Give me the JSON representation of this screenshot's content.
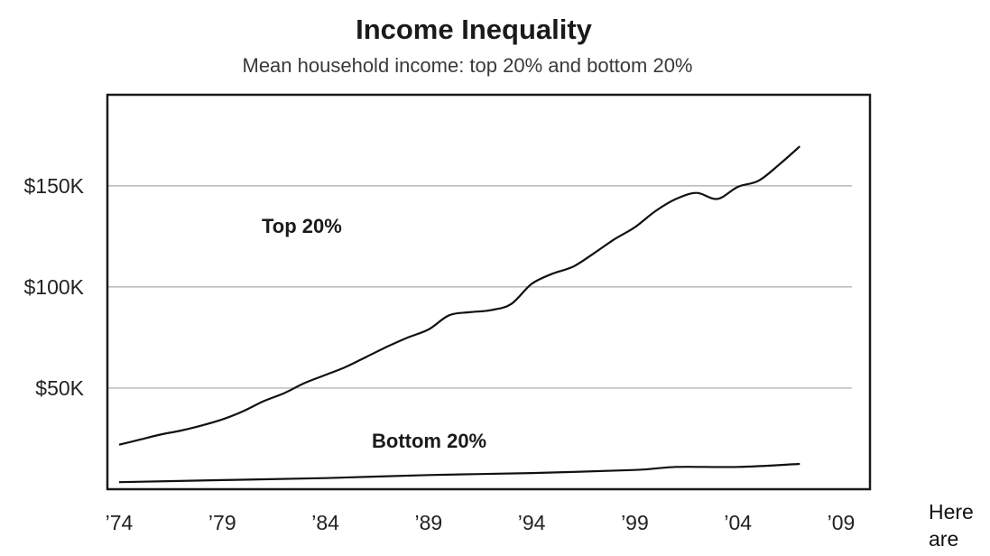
{
  "chart_data": {
    "type": "line",
    "title": "Income Inequality",
    "subtitle": "Mean household income:  top 20% and bottom 20%",
    "xlabel": "",
    "ylabel": "",
    "xlim": [
      1974,
      2009
    ],
    "ylim": [
      0,
      195000
    ],
    "grid": true,
    "x_ticks": [
      {
        "value": 1974,
        "label": "’74"
      },
      {
        "value": 1979,
        "label": "’79"
      },
      {
        "value": 1984,
        "label": "’84"
      },
      {
        "value": 1989,
        "label": "’89"
      },
      {
        "value": 1994,
        "label": "’94"
      },
      {
        "value": 1999,
        "label": "’99"
      },
      {
        "value": 2004,
        "label": "’04"
      },
      {
        "value": 2009,
        "label": "’09"
      }
    ],
    "y_ticks": [
      {
        "value": 50000,
        "label": "$50K"
      },
      {
        "value": 100000,
        "label": "$100K"
      },
      {
        "value": 150000,
        "label": "$150K"
      }
    ],
    "series": [
      {
        "name": "Top 20%",
        "x": [
          1974,
          1975,
          1976,
          1977,
          1978,
          1979,
          1980,
          1981,
          1982,
          1983,
          1984,
          1985,
          1986,
          1987,
          1988,
          1989,
          1990,
          1991,
          1992,
          1993,
          1994,
          1995,
          1996,
          1997,
          1998,
          1999,
          2000,
          2001,
          2002,
          2003,
          2004,
          2005,
          2006,
          2007
        ],
        "values": [
          22000,
          24500,
          27000,
          29000,
          31500,
          34500,
          38500,
          43500,
          47500,
          52500,
          56500,
          60500,
          65500,
          70500,
          75000,
          79000,
          86000,
          87500,
          88500,
          91500,
          101500,
          106500,
          110000,
          116500,
          123500,
          129500,
          137500,
          143500,
          146500,
          143500,
          149500,
          152500,
          160500,
          169500
        ]
      },
      {
        "name": "Bottom 20%",
        "x": [
          1974,
          1979,
          1984,
          1989,
          1994,
          1999,
          2001,
          2004,
          2007
        ],
        "values": [
          3500,
          4500,
          5500,
          7000,
          8000,
          9500,
          11000,
          11000,
          12500
        ]
      }
    ],
    "labels": {
      "top": "Top 20%",
      "bottom": "Bottom 20%"
    }
  },
  "side_text": {
    "line1": "Here",
    "line2": "are"
  }
}
